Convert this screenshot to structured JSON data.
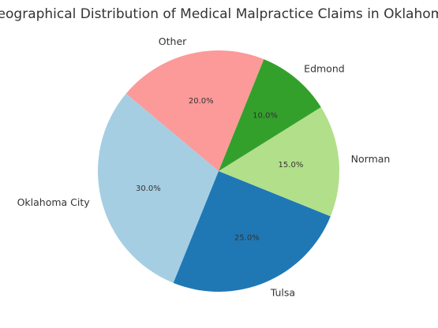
{
  "chart_data": {
    "type": "pie",
    "title": "Geographical Distribution of Medical Malpractice Claims in Oklahoma",
    "categories": [
      "Oklahoma City",
      "Tulsa",
      "Norman",
      "Edmond",
      "Other"
    ],
    "values": [
      30,
      25,
      15,
      10,
      20
    ],
    "value_labels": [
      "30.0%",
      "25.0%",
      "15.0%",
      "10.0%",
      "20.0%"
    ],
    "colors": [
      "#a6cee3",
      "#1f78b4",
      "#b2df8a",
      "#33a02c",
      "#fb9a99"
    ],
    "startangle": 140
  }
}
